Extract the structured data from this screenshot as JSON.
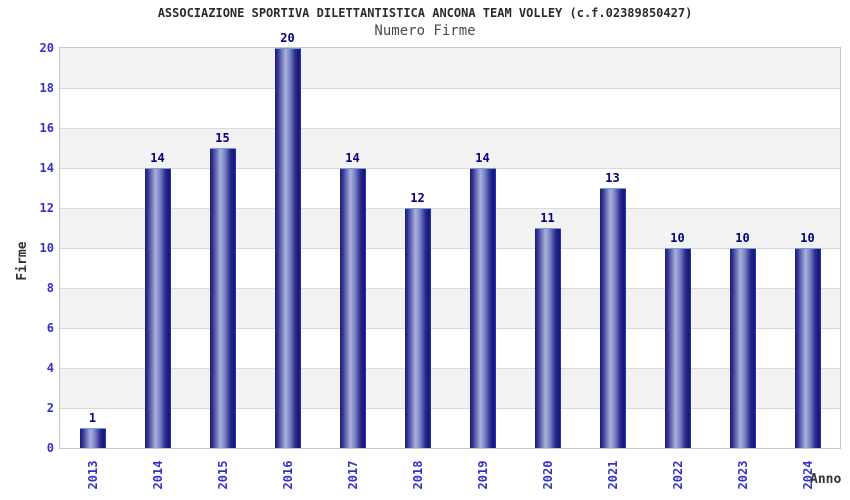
{
  "chart_data": {
    "type": "bar",
    "title": "ASSOCIAZIONE SPORTIVA DILETTANTISTICA ANCONA TEAM VOLLEY (c.f.02389850427)",
    "subtitle": "Numero Firme",
    "xlabel": "Anno",
    "ylabel": "Firme",
    "categories": [
      "2013",
      "2014",
      "2015",
      "2016",
      "2017",
      "2018",
      "2019",
      "2020",
      "2021",
      "2022",
      "2023",
      "2024"
    ],
    "values": [
      1,
      14,
      15,
      20,
      14,
      12,
      14,
      11,
      13,
      10,
      10,
      10
    ],
    "ylim": [
      0,
      20
    ],
    "ytick_step": 2,
    "yticks": [
      0,
      2,
      4,
      6,
      8,
      10,
      12,
      14,
      16,
      18,
      20
    ],
    "grid": "horizontal-bands",
    "legend": "none",
    "value_labels_shown": true,
    "colors": {
      "band_gray": "#f2f2f2",
      "band_white": "#ffffff",
      "grid_line": "#dadada",
      "plot_border": "#c8c8c8",
      "tick_label": "#3232cd",
      "value_label": "#00007d",
      "title_color": "#2b2b2b",
      "subtitle_color": "#4a4a4a",
      "axis_title_color": "#333333",
      "bar_top_border": "#6f9fe0",
      "bar_gradient": [
        "#1c1c7a 0%",
        "#2e2e8e 9%",
        "#a9b1da 40%",
        "#7e88c8 56%",
        "#2c2c90 78%",
        "#15156e 93%",
        "#2a3ad8 100%"
      ]
    }
  }
}
